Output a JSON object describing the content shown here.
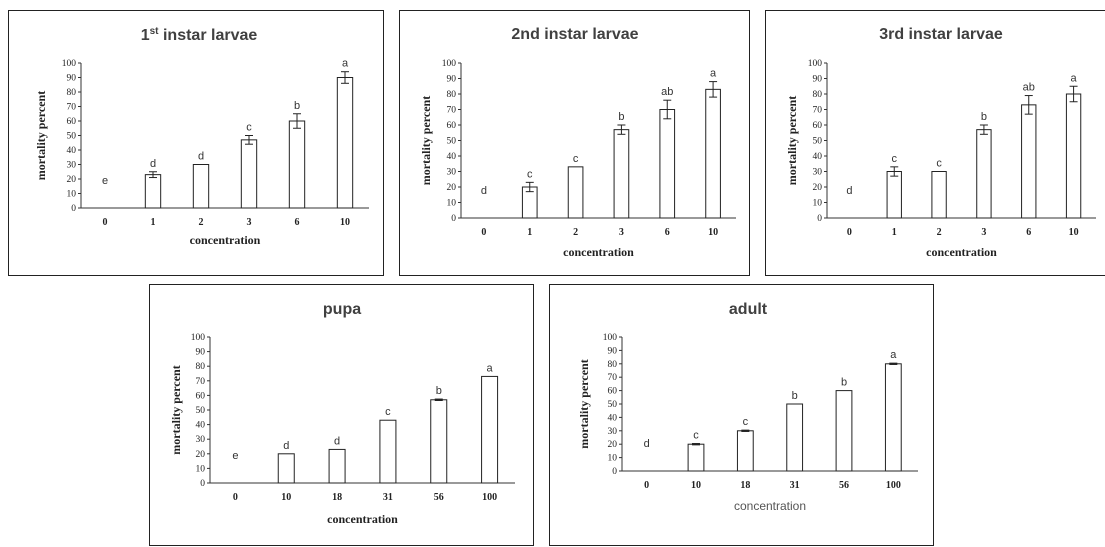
{
  "chart_data": [
    {
      "type": "bar",
      "title": "1",
      "title_sup": "st",
      "title_rest": " instar larvae",
      "xlabel": "concentration",
      "xlabel_style": "bold",
      "ylabel": "mortality percent",
      "ylim": [
        0,
        100
      ],
      "yticks": [
        0,
        10,
        20,
        30,
        40,
        50,
        60,
        70,
        80,
        90,
        100
      ],
      "categories": [
        "0",
        "1",
        "2",
        "3",
        "6",
        "10"
      ],
      "values": [
        0,
        23,
        30,
        47,
        60,
        90
      ],
      "errors": [
        0,
        2,
        0,
        3,
        5,
        4
      ],
      "letters": [
        "e",
        "d",
        "d",
        "c",
        "b",
        "a"
      ]
    },
    {
      "type": "bar",
      "title": "2nd instar larvae",
      "xlabel": "concentration",
      "xlabel_style": "bold",
      "ylabel": "mortality percent",
      "ylim": [
        0,
        100
      ],
      "yticks": [
        0,
        10,
        20,
        30,
        40,
        50,
        60,
        70,
        80,
        90,
        100
      ],
      "categories": [
        "0",
        "1",
        "2",
        "3",
        "6",
        "10"
      ],
      "values": [
        0,
        20,
        33,
        57,
        70,
        83
      ],
      "errors": [
        0,
        3,
        0,
        3,
        6,
        5
      ],
      "letters": [
        "d",
        "c",
        "c",
        "b",
        "ab",
        "a"
      ]
    },
    {
      "type": "bar",
      "title": "3rd instar larvae",
      "xlabel": "concentration",
      "xlabel_style": "bold",
      "ylabel": "mortality percent",
      "ylim": [
        0,
        100
      ],
      "yticks": [
        0,
        10,
        20,
        30,
        40,
        50,
        60,
        70,
        80,
        90,
        100
      ],
      "categories": [
        "0",
        "1",
        "2",
        "3",
        "6",
        "10"
      ],
      "values": [
        0,
        30,
        30,
        57,
        73,
        80
      ],
      "errors": [
        0,
        3,
        0,
        3,
        6,
        5
      ],
      "letters": [
        "d",
        "c",
        "c",
        "b",
        "ab",
        "a"
      ]
    },
    {
      "type": "bar",
      "title": "pupa",
      "xlabel": "concentration",
      "xlabel_style": "bold",
      "ylabel": "mortality percent",
      "ylim": [
        0,
        100
      ],
      "yticks": [
        0,
        10,
        20,
        30,
        40,
        50,
        60,
        70,
        80,
        90,
        100
      ],
      "categories": [
        "0",
        "10",
        "18",
        "31",
        "56",
        "100"
      ],
      "values": [
        0,
        20,
        23,
        43,
        57,
        73
      ],
      "errors": [
        0,
        0,
        0,
        0,
        0.5,
        0
      ],
      "letters": [
        "e",
        "d",
        "d",
        "c",
        "b",
        "a"
      ]
    },
    {
      "type": "bar",
      "title": "adult",
      "xlabel": "concentration",
      "xlabel_style": "plain",
      "ylabel": "mortality percent",
      "ylim": [
        0,
        100
      ],
      "yticks": [
        0,
        10,
        20,
        30,
        40,
        50,
        60,
        70,
        80,
        90,
        100
      ],
      "categories": [
        "0",
        "10",
        "18",
        "31",
        "56",
        "100"
      ],
      "values": [
        0,
        20,
        30,
        50,
        60,
        80
      ],
      "errors": [
        0,
        0.5,
        0.5,
        0,
        0,
        0.5
      ],
      "letters": [
        "d",
        "c",
        "c",
        "b",
        "b",
        "a"
      ]
    }
  ]
}
